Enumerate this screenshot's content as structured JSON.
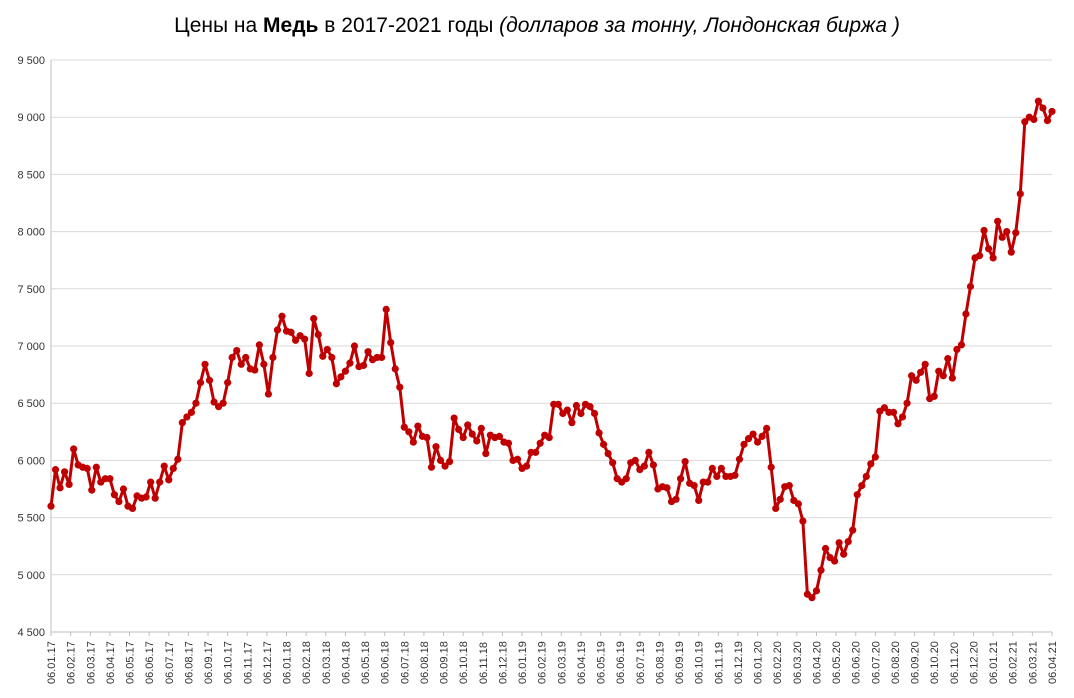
{
  "title": {
    "part1": "Цены на ",
    "bold": "Медь",
    "part2": " в 2017-2021 годы ",
    "italic": "(долларов за тонну, Лондонская биржа )"
  },
  "colors": {
    "line": "#C00000",
    "grid": "#D9D9D9",
    "axis": "#BFBFBF"
  },
  "chart_data": {
    "type": "line",
    "title": "Цены на Медь в 2017-2021 годы (долларов за тонну, Лондонская биржа )",
    "xlabel": "",
    "ylabel": "",
    "ylim": [
      4500,
      9500
    ],
    "yticks": [
      4500,
      5000,
      5500,
      6000,
      6500,
      7000,
      7500,
      8000,
      8500,
      9000,
      9500
    ],
    "ytick_labels": [
      "4 500",
      "5 000",
      "5 500",
      "6 000",
      "6 500",
      "7 000",
      "7 500",
      "8 000",
      "8 500",
      "9 000",
      "9 500"
    ],
    "xtick_labels": [
      "06.01.17",
      "06.02.17",
      "06.03.17",
      "06.04.17",
      "06.05.17",
      "06.06.17",
      "06.07.17",
      "06.08.17",
      "06.09.17",
      "06.10.17",
      "06.11.17",
      "06.12.17",
      "06.01.18",
      "06.02.18",
      "06.03.18",
      "06.04.18",
      "06.05.18",
      "06.06.18",
      "06.07.18",
      "06.08.18",
      "06.09.18",
      "06.10.18",
      "06.11.18",
      "06.12.18",
      "06.01.19",
      "06.02.19",
      "06.03.19",
      "06.04.19",
      "06.05.19",
      "06.06.19",
      "06.07.19",
      "06.08.19",
      "06.09.19",
      "06.10.19",
      "06.11.19",
      "06.12.19",
      "06.01.20",
      "06.02.20",
      "06.03.20",
      "06.04.20",
      "06.05.20",
      "06.06.20",
      "06.07.20",
      "06.08.20",
      "06.09.20",
      "06.10.20",
      "06.11.20",
      "06.12.20",
      "06.01.21",
      "06.02.21",
      "06.03.21",
      "06.04.21"
    ],
    "grid": true,
    "legend": "none",
    "series": [
      {
        "marker": "circle",
        "values": [
          5600,
          5920,
          5760,
          5900,
          5790,
          6100,
          5960,
          5940,
          5930,
          5740,
          5940,
          5810,
          5840,
          5840,
          5700,
          5640,
          5750,
          5600,
          5580,
          5690,
          5670,
          5680,
          5810,
          5670,
          5810,
          5950,
          5830,
          5930,
          6010,
          6330,
          6380,
          6420,
          6500,
          6680,
          6840,
          6700,
          6510,
          6470,
          6500,
          6680,
          6900,
          6960,
          6840,
          6900,
          6800,
          6790,
          7010,
          6840,
          6580,
          6900,
          7140,
          7260,
          7130,
          7120,
          7050,
          7090,
          7060,
          6760,
          7240,
          7100,
          6910,
          6970,
          6900,
          6670,
          6730,
          6780,
          6850,
          7000,
          6820,
          6830,
          6950,
          6880,
          6900,
          6900,
          7320,
          7030,
          6800,
          6640,
          6290,
          6250,
          6160,
          6300,
          6210,
          6200,
          5940,
          6120,
          6000,
          5950,
          5990,
          6370,
          6270,
          6200,
          6310,
          6230,
          6170,
          6280,
          6060,
          6220,
          6200,
          6210,
          6160,
          6150,
          6000,
          6010,
          5930,
          5950,
          6070,
          6070,
          6150,
          6220,
          6200,
          6490,
          6490,
          6410,
          6440,
          6330,
          6480,
          6410,
          6490,
          6470,
          6410,
          6240,
          6140,
          6060,
          5980,
          5840,
          5810,
          5840,
          5980,
          6000,
          5920,
          5950,
          6070,
          5960,
          5750,
          5770,
          5760,
          5640,
          5660,
          5840,
          5990,
          5800,
          5780,
          5650,
          5810,
          5810,
          5930,
          5860,
          5930,
          5860,
          5860,
          5870,
          6010,
          6140,
          6190,
          6230,
          6160,
          6210,
          6280,
          5940,
          5580,
          5660,
          5770,
          5780,
          5650,
          5620,
          5470,
          4830,
          4800,
          4860,
          5040,
          5230,
          5150,
          5120,
          5280,
          5180,
          5290,
          5390,
          5700,
          5780,
          5860,
          5970,
          6030,
          6430,
          6460,
          6420,
          6420,
          6320,
          6380,
          6500,
          6740,
          6700,
          6770,
          6840,
          6540,
          6560,
          6780,
          6740,
          6890,
          6720,
          6970,
          7010,
          7280,
          7520,
          7770,
          7790,
          8010,
          7850,
          7770,
          8090,
          7950,
          8000,
          7820,
          7990,
          8330,
          8960,
          9000,
          8980,
          9140,
          9080,
          8970,
          9050
        ]
      }
    ]
  }
}
